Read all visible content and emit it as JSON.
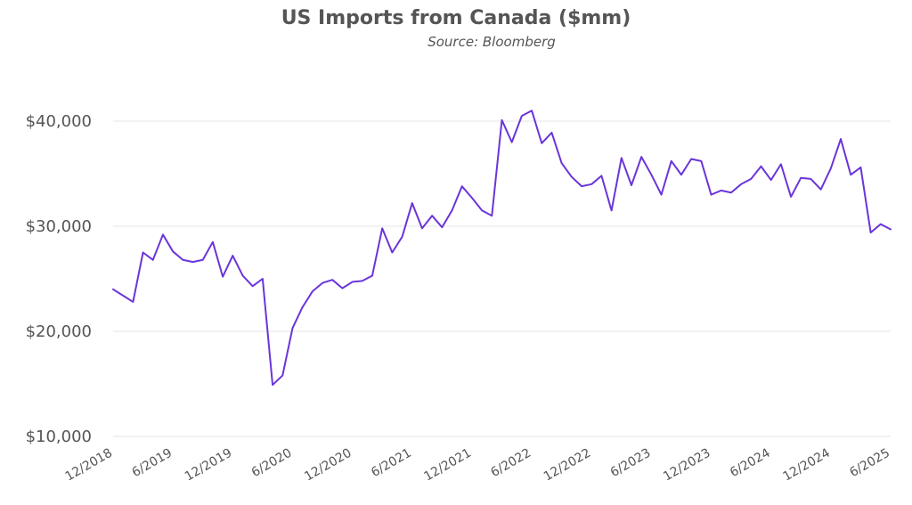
{
  "chart_data": {
    "type": "line",
    "title": "US Imports from Canada ($mm)",
    "subtitle": "Source: Bloomberg",
    "xlabel": "",
    "ylabel": "",
    "ylim": [
      10000,
      40000
    ],
    "grid": true,
    "legend": "none",
    "y_tick_values": [
      10000,
      20000,
      30000,
      40000
    ],
    "y_tick_labels": [
      "$10,000",
      "$20,000",
      "$30,000",
      "$40,000"
    ],
    "x_tick_labels": [
      "12/2018",
      "6/2019",
      "12/2019",
      "6/2020",
      "12/2020",
      "6/2021",
      "12/2021",
      "6/2022",
      "12/2022",
      "6/2023",
      "12/2023",
      "6/2024",
      "12/2024",
      "6/2025"
    ],
    "colors": {
      "line": "#6a35d9",
      "grid": "#e6e6e6",
      "text": "#555555"
    },
    "series": [
      {
        "x": [
          "12/2018",
          "1/2019",
          "2/2019",
          "3/2019",
          "4/2019",
          "5/2019",
          "6/2019",
          "7/2019",
          "8/2019",
          "9/2019",
          "10/2019",
          "11/2019",
          "12/2019",
          "1/2020",
          "2/2020",
          "3/2020",
          "4/2020",
          "5/2020",
          "6/2020",
          "7/2020",
          "8/2020",
          "9/2020",
          "10/2020",
          "11/2020",
          "12/2020",
          "1/2021",
          "2/2021",
          "3/2021",
          "4/2021",
          "5/2021",
          "6/2021",
          "7/2021",
          "8/2021",
          "9/2021",
          "10/2021",
          "11/2021",
          "12/2021",
          "1/2022",
          "2/2022",
          "3/2022",
          "4/2022",
          "5/2022",
          "6/2022",
          "7/2022",
          "8/2022",
          "9/2022",
          "10/2022",
          "11/2022",
          "12/2022",
          "1/2023",
          "2/2023",
          "3/2023",
          "4/2023",
          "5/2023",
          "6/2023",
          "7/2023",
          "8/2023",
          "9/2023",
          "10/2023",
          "11/2023",
          "12/2023",
          "1/2024",
          "2/2024",
          "3/2024",
          "4/2024",
          "5/2024",
          "6/2024",
          "7/2024",
          "8/2024",
          "9/2024",
          "10/2024",
          "11/2024",
          "12/2024",
          "1/2025",
          "2/2025",
          "3/2025",
          "4/2025",
          "5/2025",
          "6/2025"
        ],
        "values": [
          24000,
          23400,
          22800,
          27500,
          26800,
          29200,
          27600,
          26800,
          26600,
          26800,
          28500,
          25200,
          27200,
          25300,
          24300,
          25000,
          14900,
          15800,
          20300,
          22300,
          23800,
          24600,
          24900,
          24100,
          24700,
          24800,
          25300,
          29800,
          27500,
          29000,
          32200,
          29800,
          31000,
          29900,
          31500,
          33800,
          32700,
          31500,
          31000,
          40100,
          38000,
          40500,
          41000,
          37900,
          38900,
          36000,
          34700,
          33800,
          34000,
          34800,
          31500,
          36500,
          33900,
          36600,
          34900,
          33000,
          36200,
          34900,
          36400,
          36200,
          33000,
          33400,
          33200,
          34000,
          34500,
          35700,
          34400,
          35900,
          32800,
          34600,
          34500,
          33500,
          35500,
          38300,
          34900,
          35600,
          29400,
          30200,
          29700
        ]
      }
    ]
  }
}
